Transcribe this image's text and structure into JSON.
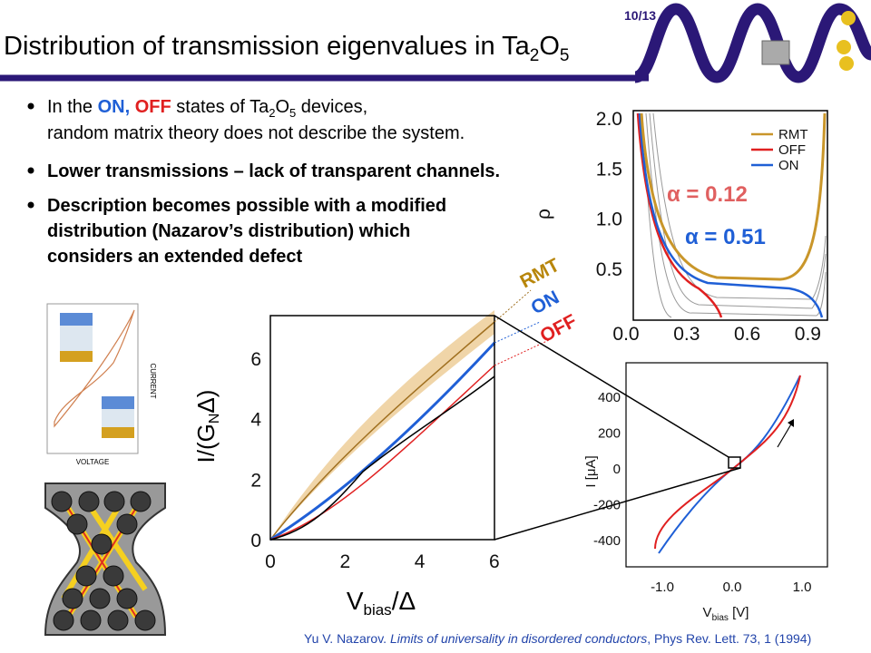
{
  "page_number": "10/13",
  "title": [
    "Distribution of transmission eigenvalues in Ta",
    "2",
    "O",
    "5"
  ],
  "bullets": [
    {
      "parts": [
        "In the ",
        "ON,",
        " ",
        "OFF",
        " states of Ta",
        "2",
        "O",
        "5",
        " devices,"
      ],
      "line2": "random matrix theory does not describe the system."
    },
    {
      "lines": [
        "Lower transmissions – lack of transparent channels."
      ]
    },
    {
      "lines": [
        "Description becomes possible with a modified",
        "distribution (Nazarov’s distribution) which",
        "considers an extended defect"
      ]
    }
  ],
  "rho_plot": {
    "ylabel": "ρ",
    "yticks": [
      "2.0",
      "1.5",
      "1.0",
      "0.5"
    ],
    "xticks": [
      "0.0",
      "0.3",
      "0.6",
      "0.9"
    ],
    "legend": [
      "RMT",
      "OFF",
      "ON"
    ],
    "annotations": [
      "α = 0.12",
      "α = 0.51"
    ]
  },
  "iv_plot": {
    "ylabel": "I [μA]",
    "xlabel": [
      "V",
      "bias",
      " [V]"
    ],
    "yticks": [
      400,
      200,
      0,
      -200,
      -400
    ],
    "xticks": [
      "-1.0",
      "0.0",
      "1.0"
    ]
  },
  "main_plot": {
    "ylabel": [
      "I/(G",
      "N",
      "Δ)"
    ],
    "xlabel": [
      "V",
      "bias",
      "/Δ"
    ],
    "yticks": [
      0,
      2,
      4,
      6
    ],
    "xticks": [
      0,
      2,
      4,
      6
    ],
    "curve_labels": [
      "RMT",
      "ON",
      "OFF"
    ]
  },
  "inset": {
    "ylabel": "CURRENT",
    "xlabel": "VOLTAGE"
  },
  "citation": [
    "Yu V. Nazarov. ",
    "Limits of universality in disordered conductors",
    ", Phys Rev. Lett. 73, 1 (1994)"
  ]
}
